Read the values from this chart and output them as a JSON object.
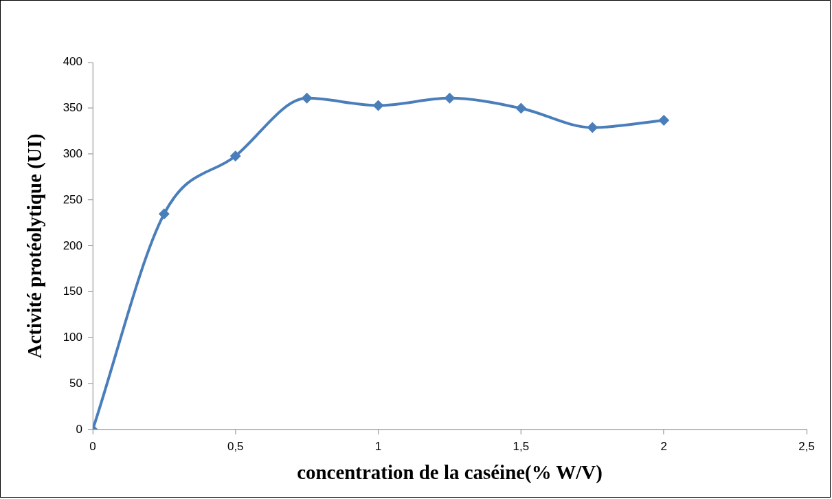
{
  "chart_data": {
    "type": "line",
    "xlabel": "concentration de la caséine(% W/V)",
    "ylabel": "Activité protéolytique (UI)",
    "x": [
      0,
      0.25,
      0.5,
      0.75,
      1,
      1.25,
      1.5,
      1.75,
      2
    ],
    "series": [
      {
        "color": "#4a7ebb",
        "values": [
          0,
          235,
          298,
          361,
          353,
          361,
          350,
          329,
          337
        ]
      }
    ],
    "xlim": [
      0,
      2.5
    ],
    "xticks": [
      0,
      {
        "value": 0.5,
        "label": "0,5"
      },
      1,
      {
        "value": 1.5,
        "label": "1,5"
      },
      2,
      {
        "value": 2.5,
        "label": "2,5"
      }
    ],
    "ylim": [
      0,
      400
    ],
    "yticks": [
      0,
      50,
      100,
      150,
      200,
      250,
      300,
      350,
      400
    ],
    "grid": false,
    "legend": false,
    "marker": "diamond",
    "line_style": "solid"
  }
}
